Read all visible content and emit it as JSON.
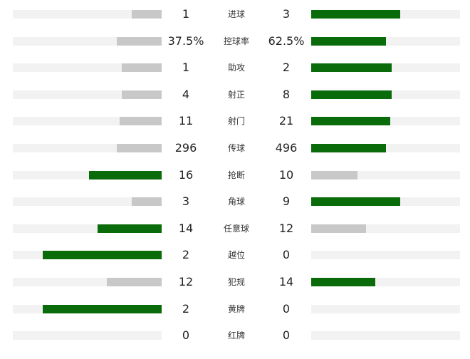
{
  "colors": {
    "leader_bar": "#0a6b0a",
    "trailer_bar": "#c8c8c8",
    "track": "#f2f2f2",
    "text": "#222222"
  },
  "stats": [
    {
      "label": "进球",
      "home": "1",
      "away": "3",
      "home_fraction": 0.2,
      "away_fraction": 0.6,
      "leader": "away"
    },
    {
      "label": "控球率",
      "home": "37.5%",
      "away": "62.5%",
      "home_fraction": 0.3,
      "away_fraction": 0.5,
      "leader": "away"
    },
    {
      "label": "助攻",
      "home": "1",
      "away": "2",
      "home_fraction": 0.27,
      "away_fraction": 0.54,
      "leader": "away"
    },
    {
      "label": "射正",
      "home": "4",
      "away": "8",
      "home_fraction": 0.27,
      "away_fraction": 0.54,
      "leader": "away"
    },
    {
      "label": "射门",
      "home": "11",
      "away": "21",
      "home_fraction": 0.28,
      "away_fraction": 0.53,
      "leader": "away"
    },
    {
      "label": "传球",
      "home": "296",
      "away": "496",
      "home_fraction": 0.3,
      "away_fraction": 0.5,
      "leader": "away"
    },
    {
      "label": "抢断",
      "home": "16",
      "away": "10",
      "home_fraction": 0.49,
      "away_fraction": 0.31,
      "leader": "home"
    },
    {
      "label": "角球",
      "home": "3",
      "away": "9",
      "home_fraction": 0.2,
      "away_fraction": 0.6,
      "leader": "away"
    },
    {
      "label": "任意球",
      "home": "14",
      "away": "12",
      "home_fraction": 0.43,
      "away_fraction": 0.37,
      "leader": "home"
    },
    {
      "label": "越位",
      "home": "2",
      "away": "0",
      "home_fraction": 0.8,
      "away_fraction": 0.0,
      "leader": "home"
    },
    {
      "label": "犯规",
      "home": "12",
      "away": "14",
      "home_fraction": 0.37,
      "away_fraction": 0.43,
      "leader": "away"
    },
    {
      "label": "黄牌",
      "home": "2",
      "away": "0",
      "home_fraction": 0.8,
      "away_fraction": 0.0,
      "leader": "home"
    },
    {
      "label": "红牌",
      "home": "0",
      "away": "0",
      "home_fraction": 0.0,
      "away_fraction": 0.0,
      "leader": "none"
    }
  ]
}
